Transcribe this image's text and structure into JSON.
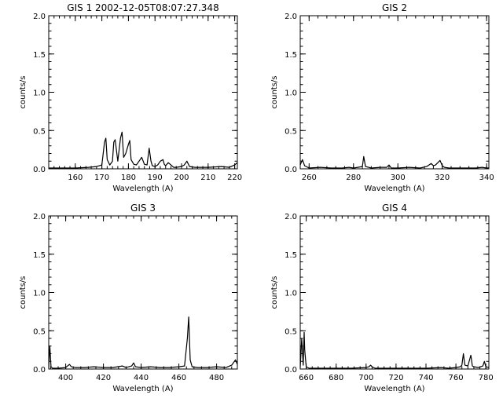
{
  "chart_data": [
    {
      "type": "line",
      "title": "GIS 1 2002-12-05T08:07:27.348",
      "xlabel": "Wavelength (A)",
      "ylabel": "counts/s",
      "xlim": [
        150,
        221
      ],
      "ylim": [
        0,
        2.0
      ],
      "xticks": [
        160,
        170,
        180,
        190,
        200,
        210,
        220
      ],
      "yticks": [
        "0.0",
        "0.5",
        "1.0",
        "1.5",
        "2.0"
      ],
      "x": [
        150,
        155,
        160,
        165,
        168,
        170,
        171,
        171.5,
        172,
        173,
        174,
        174.5,
        175,
        176,
        177,
        177.6,
        178.2,
        179,
        180,
        180.5,
        181,
        182,
        183,
        184,
        185,
        186,
        187,
        187.8,
        188.5,
        189,
        190,
        191,
        192,
        193,
        193.5,
        194,
        195,
        196,
        197,
        198,
        200,
        201,
        202,
        203,
        205,
        210,
        215,
        218,
        220,
        221
      ],
      "y": [
        0.01,
        0.01,
        0.01,
        0.02,
        0.03,
        0.05,
        0.35,
        0.4,
        0.12,
        0.05,
        0.1,
        0.35,
        0.38,
        0.1,
        0.4,
        0.48,
        0.15,
        0.2,
        0.32,
        0.37,
        0.12,
        0.06,
        0.05,
        0.1,
        0.15,
        0.06,
        0.05,
        0.27,
        0.1,
        0.04,
        0.03,
        0.05,
        0.1,
        0.12,
        0.06,
        0.04,
        0.08,
        0.05,
        0.02,
        0.02,
        0.03,
        0.05,
        0.1,
        0.03,
        0.02,
        0.02,
        0.03,
        0.02,
        0.05,
        0.08
      ]
    },
    {
      "type": "line",
      "title": "GIS 2",
      "xlabel": "Wavelength (A)",
      "ylabel": "counts/s",
      "xlim": [
        256,
        341
      ],
      "ylim": [
        0,
        2.0
      ],
      "xticks": [
        260,
        280,
        300,
        320,
        340
      ],
      "yticks": [
        "0.0",
        "0.5",
        "1.0",
        "1.5",
        "2.0"
      ],
      "x": [
        256,
        257,
        258,
        260,
        265,
        270,
        275,
        278,
        280,
        282,
        284,
        284.6,
        285.4,
        288,
        292,
        295,
        296,
        297,
        300,
        305,
        310,
        313,
        314,
        315,
        316,
        317,
        318,
        319,
        320,
        321,
        323,
        330,
        335,
        338,
        340,
        341
      ],
      "y": [
        0.05,
        0.12,
        0.04,
        0.01,
        0.02,
        0.01,
        0.01,
        0.02,
        0.01,
        0.02,
        0.03,
        0.16,
        0.03,
        0.01,
        0.02,
        0.02,
        0.05,
        0.01,
        0.01,
        0.02,
        0.01,
        0.03,
        0.05,
        0.07,
        0.04,
        0.05,
        0.08,
        0.11,
        0.04,
        0.02,
        0.01,
        0.01,
        0.01,
        0.02,
        0.01,
        0.01
      ]
    },
    {
      "type": "line",
      "title": "GIS 3",
      "xlabel": "Wavelength (A)",
      "ylabel": "counts/s",
      "xlim": [
        391,
        491
      ],
      "ylim": [
        0,
        2.0
      ],
      "xticks": [
        400,
        420,
        440,
        460,
        480
      ],
      "yticks": [
        "0.0",
        "0.5",
        "1.0",
        "1.5",
        "2.0"
      ],
      "x": [
        391,
        391.6,
        392.2,
        393,
        396,
        400,
        402,
        403,
        405,
        410,
        415,
        420,
        425,
        430,
        432,
        435,
        436,
        437,
        440,
        445,
        450,
        455,
        460,
        463,
        464.5,
        465.2,
        466,
        467,
        470,
        475,
        480,
        485,
        488,
        490,
        491
      ],
      "y": [
        0.02,
        0.3,
        0.03,
        0.01,
        0.01,
        0.02,
        0.06,
        0.03,
        0.02,
        0.02,
        0.03,
        0.02,
        0.02,
        0.04,
        0.02,
        0.04,
        0.08,
        0.03,
        0.02,
        0.03,
        0.02,
        0.02,
        0.03,
        0.04,
        0.4,
        0.68,
        0.12,
        0.03,
        0.02,
        0.02,
        0.03,
        0.02,
        0.05,
        0.12,
        0.06
      ]
    },
    {
      "type": "line",
      "title": "GIS 4",
      "xlabel": "Wavelength (A)",
      "ylabel": "counts/s",
      "xlim": [
        656,
        782
      ],
      "ylim": [
        0,
        2.0
      ],
      "xticks": [
        660,
        680,
        700,
        720,
        740,
        760,
        780
      ],
      "yticks": [
        "0.0",
        "0.5",
        "1.0",
        "1.5",
        "2.0"
      ],
      "x": [
        656,
        657,
        658,
        658.6,
        659,
        660,
        662,
        665,
        670,
        680,
        690,
        700,
        702,
        703,
        704,
        706,
        710,
        720,
        730,
        740,
        750,
        755,
        760,
        763,
        764,
        765,
        766,
        768,
        770,
        771,
        772,
        775,
        778,
        779,
        780,
        782
      ],
      "y": [
        0.02,
        0.4,
        0.05,
        0.48,
        0.25,
        0.03,
        0.01,
        0.01,
        0.01,
        0.01,
        0.01,
        0.02,
        0.03,
        0.05,
        0.03,
        0.01,
        0.01,
        0.01,
        0.01,
        0.01,
        0.02,
        0.01,
        0.02,
        0.03,
        0.05,
        0.2,
        0.05,
        0.04,
        0.18,
        0.04,
        0.03,
        0.02,
        0.04,
        0.1,
        0.03,
        0.02
      ]
    }
  ]
}
